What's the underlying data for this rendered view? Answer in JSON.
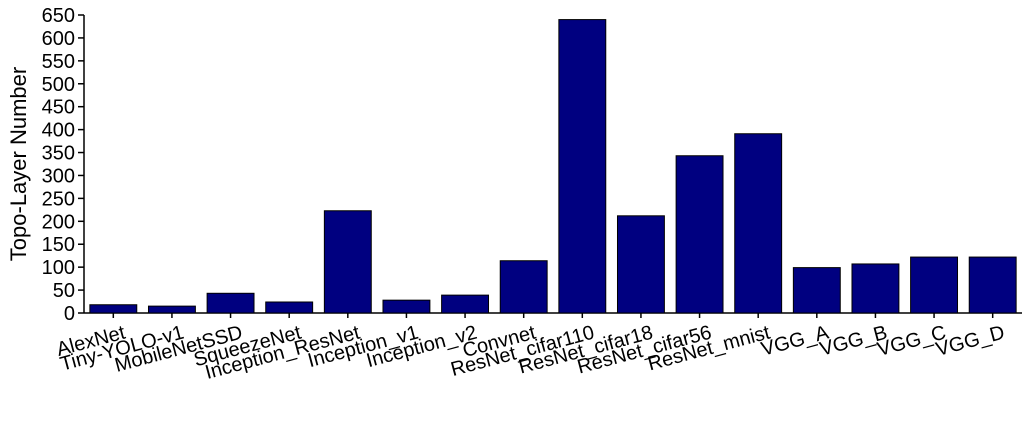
{
  "chart_data": {
    "type": "bar",
    "title": "",
    "xlabel": "",
    "ylabel": "Topo-Layer Number",
    "categories": [
      "AlexNet",
      "Tiny-YOLO-v1",
      "MobileNetSSD",
      "SqueezeNet",
      "Inception_ResNet",
      "Inception_v1",
      "Inception_v2",
      "Convnet",
      "ResNet_cifar110",
      "ResNet_cifar18",
      "ResNet_cifar56",
      "ResNet_mnist",
      "VGG_A",
      "VGG_B",
      "VGG_C",
      "VGG_D"
    ],
    "values": [
      18,
      15,
      43,
      24,
      223,
      28,
      39,
      114,
      640,
      212,
      343,
      391,
      99,
      107,
      122,
      122
    ],
    "ylim": [
      0,
      650
    ],
    "yticks": [
      0,
      50,
      100,
      150,
      200,
      250,
      300,
      350,
      400,
      450,
      500,
      550,
      600,
      650
    ],
    "bar_color": "#000080",
    "grid": false,
    "legend": "none"
  }
}
